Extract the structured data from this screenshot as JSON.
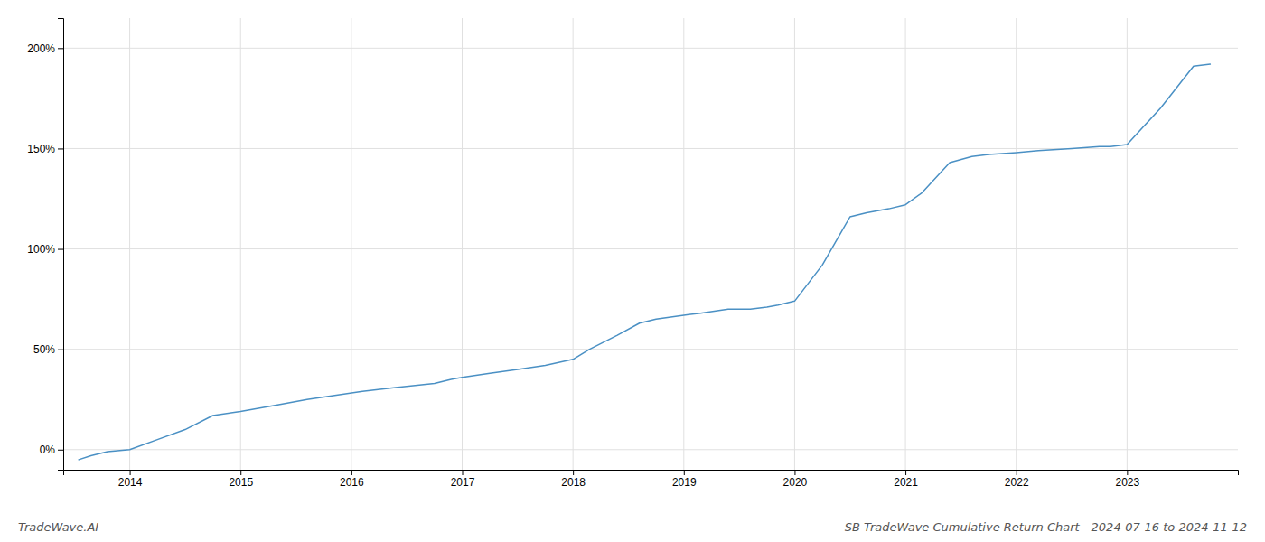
{
  "chart_data": {
    "type": "line",
    "title": "SB TradeWave Cumulative Return Chart - 2024-07-16 to 2024-11-12",
    "annotations": [
      "TradeWave.AI"
    ],
    "x": [
      2013.54,
      2013.65,
      2013.8,
      2014.0,
      2014.25,
      2014.5,
      2014.75,
      2015.0,
      2015.3,
      2015.6,
      2015.85,
      2016.1,
      2016.4,
      2016.75,
      2016.9,
      2017.0,
      2017.25,
      2017.5,
      2017.75,
      2018.0,
      2018.15,
      2018.4,
      2018.6,
      2018.75,
      2019.0,
      2019.15,
      2019.4,
      2019.6,
      2019.75,
      2019.85,
      2020.0,
      2020.25,
      2020.5,
      2020.65,
      2020.85,
      2021.0,
      2021.15,
      2021.4,
      2021.6,
      2021.75,
      2022.0,
      2022.2,
      2022.5,
      2022.75,
      2022.85,
      2023.0,
      2023.3,
      2023.6,
      2023.75
    ],
    "values": [
      -5,
      -3,
      -1,
      0,
      5,
      10,
      17,
      19,
      22,
      25,
      27,
      29,
      31,
      33,
      35,
      36,
      38,
      40,
      42,
      45,
      50,
      57,
      63,
      65,
      67,
      68,
      70,
      70,
      71,
      72,
      74,
      92,
      116,
      118,
      120,
      122,
      128,
      143,
      146,
      147,
      148,
      149,
      150,
      151,
      151,
      152,
      170,
      191,
      192
    ],
    "color": "#4a90c4",
    "xlim": [
      2013.4,
      2024.0
    ],
    "xticks": [
      2014,
      2015,
      2016,
      2017,
      2018,
      2019,
      2020,
      2021,
      2022,
      2023
    ],
    "ylim": [
      -10,
      215
    ],
    "yticks": [
      {
        "value": 0,
        "label": "0%"
      },
      {
        "value": 50,
        "label": "50%"
      },
      {
        "value": 100,
        "label": "100%"
      },
      {
        "value": 150,
        "label": "150%"
      },
      {
        "value": 200,
        "label": "200%"
      }
    ],
    "grid": true
  }
}
